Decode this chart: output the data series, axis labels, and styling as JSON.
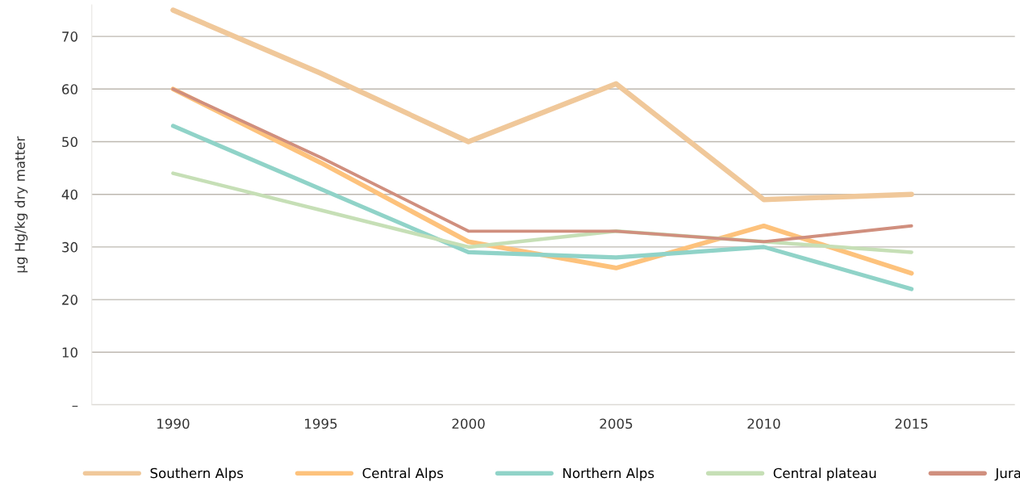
{
  "chart_data": {
    "type": "line",
    "ylabel": "µg Hg/kg dry matter",
    "categories": [
      "1990",
      "1995",
      "2000",
      "2005",
      "2010",
      "2015"
    ],
    "series": [
      {
        "name": "Southern Alps",
        "color": "#f0c89a",
        "values": [
          75,
          63,
          50,
          61,
          39,
          40
        ]
      },
      {
        "name": "Central Alps",
        "color": "#fdc27c",
        "values": [
          60,
          46,
          31,
          26,
          34,
          25
        ]
      },
      {
        "name": "Northern Alps",
        "color": "#90d3c8",
        "values": [
          53,
          41,
          29,
          28,
          30,
          22
        ]
      },
      {
        "name": "Central plateau",
        "color": "#c6dfb6",
        "values": [
          44,
          37,
          30,
          33,
          31,
          29
        ]
      },
      {
        "name": "Jura",
        "color": "#d08f7e",
        "values": [
          60,
          47,
          33,
          33,
          31,
          34
        ]
      }
    ],
    "ylim": [
      0,
      76
    ],
    "yticks": [
      {
        "value": 0,
        "label": "–"
      },
      10,
      20,
      30,
      40,
      50,
      60,
      70
    ],
    "grid": "y",
    "legend": "bottom",
    "marker": "none",
    "line_style": "solid"
  }
}
